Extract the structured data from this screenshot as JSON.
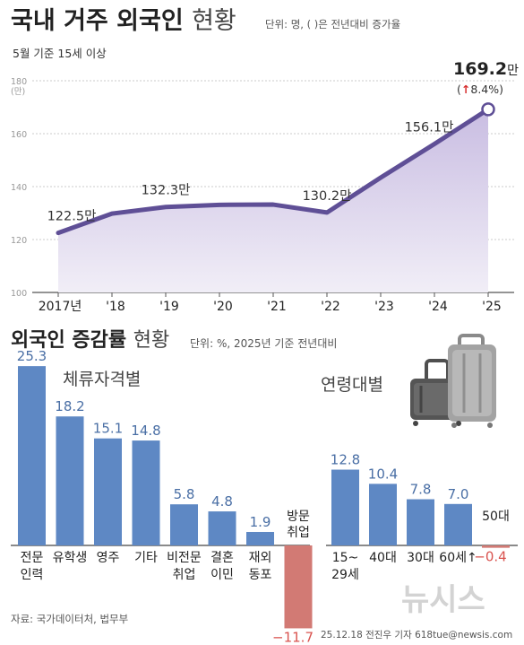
{
  "header": {
    "title": "국내 거주 외국인",
    "title_light": "현황",
    "unit_note": "단위: 명, ( )은 전년대비 증가율",
    "subtitle": "5월 기준 15세 이상"
  },
  "colors": {
    "line": "#5f4f96",
    "area_top": "#c9bde2",
    "area_bottom": "#f1eef7",
    "bar": "#5e88c4",
    "bar_negative": "#d27a74",
    "text_dark": "#222222",
    "text_muted": "#666666",
    "grid": "#bbbbbb",
    "arrow_up": "#d62b2b",
    "negative_label": "#d9534f",
    "watermark": "#d3d3d3"
  },
  "chart_data": [
    {
      "type": "area",
      "title": "국내 거주 외국인 현황",
      "unit": "만",
      "categories": [
        "2017년",
        "'18",
        "'19",
        "'20",
        "'21",
        "'22",
        "'23",
        "'24",
        "'25"
      ],
      "series": [
        {
          "values": [
            122.5,
            129.8,
            132.3,
            133.1,
            133.2,
            130.2,
            143.4,
            156.1,
            169.2
          ]
        }
      ],
      "ylim": [
        100,
        180
      ],
      "yticks": [
        100,
        120,
        140,
        160,
        180
      ],
      "ytick_top_unit": "(만)",
      "grid": true,
      "point_labels": [
        {
          "index": 0,
          "text": "122.5만"
        },
        {
          "index": 2,
          "text": "132.3만"
        },
        {
          "index": 5,
          "text": "130.2만"
        },
        {
          "index": 7,
          "text": "156.1만"
        }
      ],
      "highlight": {
        "index": 8,
        "value_text": "169.2",
        "unit": "만",
        "change_arrow": "↑",
        "change_text": "8.4%)",
        "change_open": "("
      }
    },
    {
      "type": "bar",
      "title": "외국인 증감률",
      "subtitle": "체류자격별",
      "unit": "%",
      "categories": [
        "전문\n인력",
        "유학생",
        "영주",
        "기타",
        "비전문\n취업",
        "결혼\n이민",
        "재외\n동포",
        "방문\n취업"
      ],
      "values": [
        25.3,
        18.2,
        15.1,
        14.8,
        5.8,
        4.8,
        1.9,
        -11.7
      ],
      "value_labels": [
        "25.3",
        "18.2",
        "15.1",
        "14.8",
        "5.8",
        "4.8",
        "1.9",
        "−11.7"
      ]
    },
    {
      "type": "bar",
      "subtitle": "연령대별",
      "unit": "%",
      "categories": [
        "15~\n29세",
        "40대",
        "30대",
        "60세↑",
        "50대"
      ],
      "values": [
        12.8,
        10.4,
        7.8,
        7.0,
        -0.4
      ],
      "value_labels": [
        "12.8",
        "10.4",
        "7.8",
        "7.0",
        "−0.4"
      ]
    }
  ],
  "section2": {
    "title": "외국인 증감률",
    "title_light": "현황",
    "unit_note": "단위: %, 2025년 기준 전년대비",
    "group1_label": "체류자격별",
    "group2_label": "연령대별"
  },
  "footer": {
    "source": "자료: 국가데이터처, 법무부",
    "credit": "25.12.18 전진우 기자 618tue@newsis.com",
    "watermark": "뉴시스"
  },
  "icons": [
    "suitcase-icon"
  ]
}
